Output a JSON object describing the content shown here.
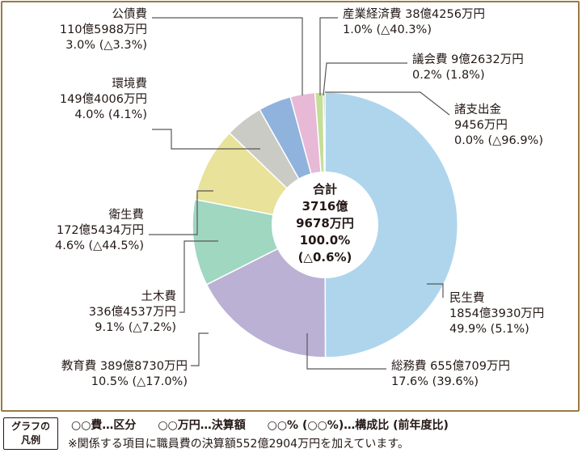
{
  "chart_data": {
    "type": "pie",
    "donut": true,
    "slices": [
      {
        "name": "民生費",
        "amount": "1854億3930万円",
        "share": 49.9,
        "share_text": "49.9%",
        "change": "(5.1%)",
        "color": "#aed5ec"
      },
      {
        "name": "総務費",
        "amount": "655億709万円",
        "share": 17.6,
        "share_text": "17.6%",
        "change": "(39.6%)",
        "color": "#bbb1d4"
      },
      {
        "name": "教育費",
        "amount": "389億8730万円",
        "share": 10.5,
        "share_text": "10.5%",
        "change": "(△17.0%)",
        "color": "#9fd7c1"
      },
      {
        "name": "土木費",
        "amount": "336億4537万円",
        "share": 9.1,
        "share_text": "9.1%",
        "change": "(△7.2%)",
        "color": "#e8e29a"
      },
      {
        "name": "衛生費",
        "amount": "172億5434万円",
        "share": 4.6,
        "share_text": "4.6%",
        "change": "(△44.5%)",
        "color": "#cbcbc6"
      },
      {
        "name": "環境費",
        "amount": "149億4006万円",
        "share": 4.0,
        "share_text": "4.0%",
        "change": "(4.1%)",
        "color": "#8fb3dc"
      },
      {
        "name": "公債費",
        "amount": "110億5988万円",
        "share": 3.0,
        "share_text": "3.0%",
        "change": "(△3.3%)",
        "color": "#e7b9d6"
      },
      {
        "name": "産業経済費",
        "amount": "38億4256万円",
        "share": 1.0,
        "share_text": "1.0%",
        "change": "(△40.3%)",
        "color": "#c4de98"
      },
      {
        "name": "議会費",
        "amount": "9億2632万円",
        "share": 0.2,
        "share_text": "0.2%",
        "change": "(1.8%)",
        "color": "#6da56a"
      },
      {
        "name": "諸支出金",
        "amount": "9456万円",
        "share": 0.0,
        "share_text": "0.0%",
        "change": "(△96.9%)",
        "color": "#aed5ec"
      }
    ],
    "total": {
      "label": "合計",
      "amount_line1": "3716億",
      "amount_line2": "9678万円",
      "share": "100.0%",
      "change": "(△0.6%)"
    }
  },
  "legend": {
    "box_line1": "グラフの",
    "box_line2": "凡例",
    "items": [
      "○○費…区分",
      "○○万円…決算額",
      "○○% (○○%)…構成比 (前年度比)"
    ],
    "note": "※関係する項目に職員費の決算額552億2904万円を加えています。"
  }
}
